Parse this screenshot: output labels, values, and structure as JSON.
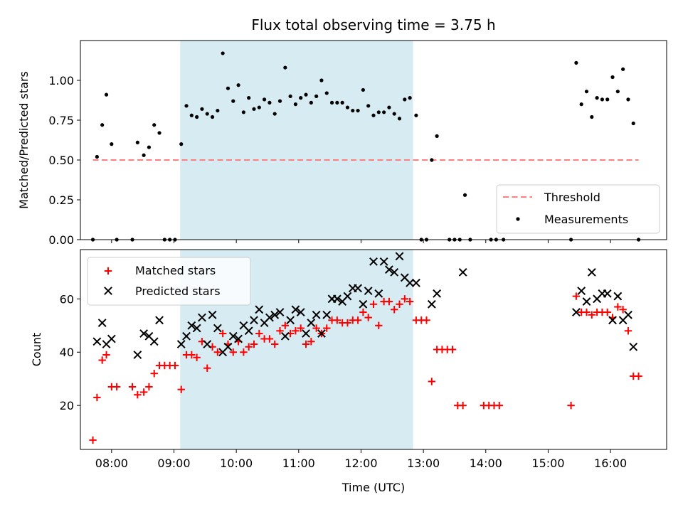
{
  "title": "Flux total observing time = 3.75 h",
  "colors": {
    "shade": "#add8e6",
    "threshold": "#ff7f7f",
    "measurement": "#000000",
    "matched": "#ff0000",
    "predicted": "#000000"
  },
  "chart_data": [
    {
      "type": "scatter",
      "panel": "top",
      "ylabel": "Matched/Predicted stars",
      "xlabel": "",
      "xlim": [
        "07:30",
        "16:54"
      ],
      "ylim": [
        0,
        1.25
      ],
      "y_ticks": [
        "0.00",
        "0.25",
        "0.50",
        "0.75",
        "1.00"
      ],
      "shaded_span": [
        "09:06",
        "12:50"
      ],
      "legend_position": "lower right",
      "threshold": {
        "name": "Threshold",
        "y": 0.5,
        "x": [
          "07:42",
          "16:27"
        ]
      },
      "series": [
        {
          "name": "Measurements",
          "points": [
            [
              "07:42",
              0.0
            ],
            [
              "07:46",
              0.52
            ],
            [
              "07:51",
              0.72
            ],
            [
              "07:55",
              0.91
            ],
            [
              "08:00",
              0.6
            ],
            [
              "08:05",
              0.0
            ],
            [
              "08:20",
              0.0
            ],
            [
              "08:25",
              0.61
            ],
            [
              "08:31",
              0.53
            ],
            [
              "08:36",
              0.58
            ],
            [
              "08:41",
              0.72
            ],
            [
              "08:46",
              0.67
            ],
            [
              "08:51",
              0.0
            ],
            [
              "08:56",
              0.0
            ],
            [
              "09:01",
              0.0
            ],
            [
              "09:07",
              0.6
            ],
            [
              "09:12",
              0.84
            ],
            [
              "09:17",
              0.78
            ],
            [
              "09:22",
              0.77
            ],
            [
              "09:27",
              0.82
            ],
            [
              "09:32",
              0.79
            ],
            [
              "09:37",
              0.77
            ],
            [
              "09:42",
              0.81
            ],
            [
              "09:47",
              1.17
            ],
            [
              "09:52",
              0.95
            ],
            [
              "09:57",
              0.87
            ],
            [
              "10:02",
              0.97
            ],
            [
              "10:07",
              0.8
            ],
            [
              "10:12",
              0.89
            ],
            [
              "10:17",
              0.82
            ],
            [
              "10:22",
              0.83
            ],
            [
              "10:27",
              0.88
            ],
            [
              "10:32",
              0.86
            ],
            [
              "10:37",
              0.79
            ],
            [
              "10:42",
              0.87
            ],
            [
              "10:47",
              1.08
            ],
            [
              "10:52",
              0.9
            ],
            [
              "10:57",
              0.85
            ],
            [
              "11:02",
              0.89
            ],
            [
              "11:07",
              0.91
            ],
            [
              "11:12",
              0.86
            ],
            [
              "11:17",
              0.9
            ],
            [
              "11:22",
              1.0
            ],
            [
              "11:27",
              0.92
            ],
            [
              "11:32",
              0.86
            ],
            [
              "11:37",
              0.86
            ],
            [
              "11:42",
              0.86
            ],
            [
              "11:47",
              0.83
            ],
            [
              "11:52",
              0.81
            ],
            [
              "11:57",
              0.81
            ],
            [
              "12:02",
              0.94
            ],
            [
              "12:07",
              0.84
            ],
            [
              "12:12",
              0.78
            ],
            [
              "12:17",
              0.8
            ],
            [
              "12:22",
              0.8
            ],
            [
              "12:27",
              0.83
            ],
            [
              "12:32",
              0.79
            ],
            [
              "12:37",
              0.76
            ],
            [
              "12:42",
              0.88
            ],
            [
              "12:47",
              0.89
            ],
            [
              "12:53",
              0.78
            ],
            [
              "12:58",
              0.0
            ],
            [
              "13:03",
              0.0
            ],
            [
              "13:08",
              0.5
            ],
            [
              "13:13",
              0.65
            ],
            [
              "13:25",
              0.0
            ],
            [
              "13:30",
              0.0
            ],
            [
              "13:35",
              0.0
            ],
            [
              "13:40",
              0.28
            ],
            [
              "13:45",
              0.0
            ],
            [
              "14:05",
              0.0
            ],
            [
              "14:10",
              0.0
            ],
            [
              "14:17",
              0.0
            ],
            [
              "15:22",
              0.0
            ],
            [
              "15:27",
              1.11
            ],
            [
              "15:32",
              0.85
            ],
            [
              "15:37",
              0.93
            ],
            [
              "15:42",
              0.77
            ],
            [
              "15:47",
              0.89
            ],
            [
              "15:52",
              0.88
            ],
            [
              "15:57",
              0.88
            ],
            [
              "16:02",
              1.02
            ],
            [
              "16:07",
              0.93
            ],
            [
              "16:12",
              1.07
            ],
            [
              "16:17",
              0.88
            ],
            [
              "16:22",
              0.73
            ],
            [
              "16:27",
              0.0
            ]
          ]
        }
      ]
    },
    {
      "type": "scatter",
      "panel": "bottom",
      "ylabel": "Count",
      "xlabel": "Time (UTC)",
      "xlim": [
        "07:30",
        "16:54"
      ],
      "ylim": [
        3.5,
        78.5
      ],
      "y_ticks": [
        "20",
        "40",
        "60"
      ],
      "x_ticks": [
        "08:00",
        "09:00",
        "10:00",
        "11:00",
        "12:00",
        "13:00",
        "14:00",
        "15:00",
        "16:00"
      ],
      "shaded_span": [
        "09:06",
        "12:50"
      ],
      "legend_position": "upper left",
      "series": [
        {
          "name": "Matched stars",
          "marker": "plus",
          "points": [
            [
              "07:42",
              7
            ],
            [
              "07:46",
              23
            ],
            [
              "07:51",
              37
            ],
            [
              "07:55",
              39
            ],
            [
              "08:00",
              27
            ],
            [
              "08:05",
              27
            ],
            [
              "08:20",
              27
            ],
            [
              "08:25",
              24
            ],
            [
              "08:31",
              25
            ],
            [
              "08:36",
              27
            ],
            [
              "08:41",
              32
            ],
            [
              "08:46",
              35
            ],
            [
              "08:51",
              35
            ],
            [
              "08:56",
              35
            ],
            [
              "09:01",
              35
            ],
            [
              "09:07",
              26
            ],
            [
              "09:12",
              39
            ],
            [
              "09:17",
              39
            ],
            [
              "09:22",
              38
            ],
            [
              "09:27",
              44
            ],
            [
              "09:32",
              34
            ],
            [
              "09:37",
              42
            ],
            [
              "09:42",
              40
            ],
            [
              "09:47",
              47
            ],
            [
              "09:52",
              43
            ],
            [
              "09:57",
              40
            ],
            [
              "10:02",
              44
            ],
            [
              "10:07",
              40
            ],
            [
              "10:12",
              42
            ],
            [
              "10:17",
              43
            ],
            [
              "10:22",
              47
            ],
            [
              "10:27",
              45
            ],
            [
              "10:32",
              45
            ],
            [
              "10:37",
              43
            ],
            [
              "10:42",
              48
            ],
            [
              "10:47",
              50
            ],
            [
              "10:52",
              47
            ],
            [
              "10:57",
              48
            ],
            [
              "11:02",
              49
            ],
            [
              "11:07",
              43
            ],
            [
              "11:12",
              44
            ],
            [
              "11:17",
              49
            ],
            [
              "11:22",
              47
            ],
            [
              "11:27",
              49
            ],
            [
              "11:32",
              52
            ],
            [
              "11:37",
              52
            ],
            [
              "11:42",
              51
            ],
            [
              "11:47",
              51
            ],
            [
              "11:52",
              52
            ],
            [
              "11:57",
              52
            ],
            [
              "12:02",
              55
            ],
            [
              "12:07",
              53
            ],
            [
              "12:12",
              58
            ],
            [
              "12:17",
              50
            ],
            [
              "12:22",
              59
            ],
            [
              "12:27",
              59
            ],
            [
              "12:32",
              56
            ],
            [
              "12:37",
              58
            ],
            [
              "12:42",
              60
            ],
            [
              "12:47",
              59
            ],
            [
              "12:53",
              52
            ],
            [
              "12:58",
              52
            ],
            [
              "13:03",
              52
            ],
            [
              "13:08",
              29
            ],
            [
              "13:13",
              41
            ],
            [
              "13:18",
              41
            ],
            [
              "13:23",
              41
            ],
            [
              "13:28",
              41
            ],
            [
              "13:33",
              20
            ],
            [
              "13:38",
              20
            ],
            [
              "13:58",
              20
            ],
            [
              "14:03",
              20
            ],
            [
              "14:08",
              20
            ],
            [
              "14:13",
              20
            ],
            [
              "15:22",
              20
            ],
            [
              "15:27",
              61
            ],
            [
              "15:32",
              55
            ],
            [
              "15:37",
              55
            ],
            [
              "15:42",
              54
            ],
            [
              "15:47",
              55
            ],
            [
              "15:52",
              55
            ],
            [
              "15:57",
              55
            ],
            [
              "16:02",
              53
            ],
            [
              "16:07",
              57
            ],
            [
              "16:12",
              56
            ],
            [
              "16:17",
              48
            ],
            [
              "16:22",
              31
            ],
            [
              "16:27",
              31
            ]
          ]
        },
        {
          "name": "Predicted stars",
          "marker": "x",
          "points": [
            [
              "07:46",
              44
            ],
            [
              "07:51",
              51
            ],
            [
              "07:55",
              43
            ],
            [
              "08:00",
              45
            ],
            [
              "08:25",
              39
            ],
            [
              "08:31",
              47
            ],
            [
              "08:36",
              46
            ],
            [
              "08:41",
              44
            ],
            [
              "08:46",
              52
            ],
            [
              "09:07",
              43
            ],
            [
              "09:12",
              46
            ],
            [
              "09:17",
              50
            ],
            [
              "09:22",
              49
            ],
            [
              "09:27",
              53
            ],
            [
              "09:32",
              43
            ],
            [
              "09:37",
              54
            ],
            [
              "09:42",
              49
            ],
            [
              "09:47",
              40
            ],
            [
              "09:52",
              42
            ],
            [
              "09:57",
              46
            ],
            [
              "10:02",
              45
            ],
            [
              "10:07",
              50
            ],
            [
              "10:12",
              48
            ],
            [
              "10:17",
              52
            ],
            [
              "10:22",
              56
            ],
            [
              "10:27",
              51
            ],
            [
              "10:32",
              53
            ],
            [
              "10:37",
              54
            ],
            [
              "10:42",
              55
            ],
            [
              "10:47",
              46
            ],
            [
              "10:52",
              52
            ],
            [
              "10:57",
              56
            ],
            [
              "11:02",
              55
            ],
            [
              "11:07",
              47
            ],
            [
              "11:12",
              51
            ],
            [
              "11:17",
              54
            ],
            [
              "11:22",
              47
            ],
            [
              "11:27",
              54
            ],
            [
              "11:32",
              60
            ],
            [
              "11:37",
              60
            ],
            [
              "11:42",
              59
            ],
            [
              "11:47",
              61
            ],
            [
              "11:52",
              64
            ],
            [
              "11:57",
              64
            ],
            [
              "12:02",
              58
            ],
            [
              "12:07",
              63
            ],
            [
              "12:12",
              74
            ],
            [
              "12:17",
              62
            ],
            [
              "12:22",
              74
            ],
            [
              "12:27",
              71
            ],
            [
              "12:32",
              70
            ],
            [
              "12:37",
              76
            ],
            [
              "12:42",
              68
            ],
            [
              "12:47",
              66
            ],
            [
              "12:53",
              66
            ],
            [
              "13:08",
              58
            ],
            [
              "13:13",
              62
            ],
            [
              "13:38",
              70
            ],
            [
              "15:27",
              55
            ],
            [
              "15:32",
              63
            ],
            [
              "15:37",
              59
            ],
            [
              "15:42",
              70
            ],
            [
              "15:47",
              60
            ],
            [
              "15:52",
              62
            ],
            [
              "15:57",
              62
            ],
            [
              "16:02",
              52
            ],
            [
              "16:07",
              61
            ],
            [
              "16:12",
              52
            ],
            [
              "16:17",
              54
            ],
            [
              "16:22",
              42
            ]
          ]
        }
      ]
    }
  ]
}
